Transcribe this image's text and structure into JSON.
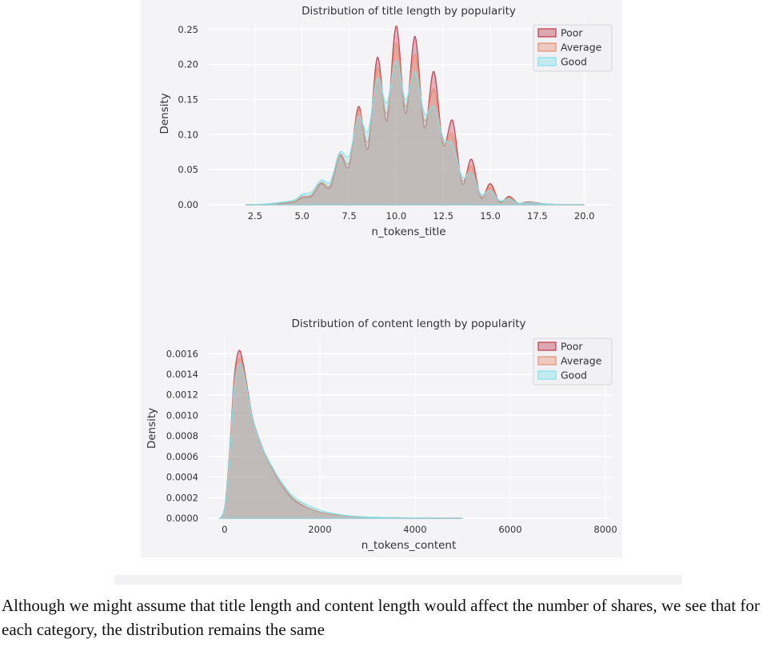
{
  "colors": {
    "figure_bg": "#f4f4f7",
    "grid": "#ffffff",
    "Poor": "#c0394b",
    "Average": "#e8906e",
    "Good": "#7fe3ec",
    "overlap": "#b9bdb3"
  },
  "chart_data": [
    {
      "type": "area",
      "title": "Distribution of title length by popularity",
      "xlabel": "n_tokens_title",
      "ylabel": "Density",
      "xlim": [
        0.0,
        21.5
      ],
      "ylim": [
        0.0,
        0.26
      ],
      "xticks": [
        "2.5",
        "5.0",
        "7.5",
        "10.0",
        "12.5",
        "15.0",
        "17.5",
        "20.0"
      ],
      "xtick_values": [
        2.5,
        5.0,
        7.5,
        10.0,
        12.5,
        15.0,
        17.5,
        20.0
      ],
      "yticks": [
        "0.00",
        "0.05",
        "0.10",
        "0.15",
        "0.20",
        "0.25"
      ],
      "ytick_values": [
        0.0,
        0.05,
        0.1,
        0.15,
        0.2,
        0.25
      ],
      "grid": true,
      "legend": {
        "position": "top-right",
        "entries": [
          "Poor",
          "Average",
          "Good"
        ]
      },
      "series": [
        {
          "name": "Poor",
          "x": [
            2.0,
            3.0,
            4.0,
            4.6,
            5.0,
            5.5,
            6.0,
            6.5,
            7.0,
            7.5,
            8.0,
            8.5,
            9.0,
            9.5,
            10.0,
            10.5,
            11.0,
            11.5,
            12.0,
            12.5,
            13.0,
            13.5,
            14.0,
            14.5,
            15.0,
            15.5,
            16.0,
            16.5,
            17.0,
            18.0,
            19.0,
            20.0
          ],
          "y": [
            0.0,
            0.0,
            0.002,
            0.004,
            0.01,
            0.012,
            0.03,
            0.025,
            0.07,
            0.055,
            0.14,
            0.08,
            0.21,
            0.12,
            0.255,
            0.13,
            0.24,
            0.11,
            0.19,
            0.085,
            0.12,
            0.03,
            0.065,
            0.01,
            0.03,
            0.004,
            0.012,
            0.002,
            0.004,
            0.001,
            0.0,
            0.0
          ]
        },
        {
          "name": "Average",
          "x": [
            2.0,
            3.0,
            4.0,
            4.6,
            5.0,
            5.5,
            6.0,
            6.5,
            7.0,
            7.5,
            8.0,
            8.5,
            9.0,
            9.5,
            10.0,
            10.5,
            11.0,
            11.5,
            12.0,
            12.5,
            13.0,
            13.5,
            14.0,
            14.5,
            15.0,
            15.5,
            16.0,
            16.5,
            17.0,
            18.0,
            19.0,
            20.0
          ],
          "y": [
            0.0,
            0.0,
            0.003,
            0.005,
            0.012,
            0.014,
            0.032,
            0.028,
            0.072,
            0.06,
            0.135,
            0.09,
            0.195,
            0.13,
            0.23,
            0.14,
            0.215,
            0.12,
            0.165,
            0.09,
            0.1,
            0.035,
            0.055,
            0.012,
            0.025,
            0.005,
            0.01,
            0.002,
            0.003,
            0.001,
            0.0,
            0.0
          ]
        },
        {
          "name": "Good",
          "x": [
            2.0,
            3.0,
            4.0,
            4.6,
            5.0,
            5.5,
            6.0,
            6.5,
            7.0,
            7.5,
            8.0,
            8.5,
            9.0,
            9.5,
            10.0,
            10.5,
            11.0,
            11.5,
            12.0,
            12.5,
            13.0,
            13.5,
            14.0,
            14.5,
            15.0,
            15.5,
            16.0,
            16.5,
            17.0,
            18.0,
            19.0,
            20.0
          ],
          "y": [
            0.0,
            0.001,
            0.004,
            0.007,
            0.015,
            0.018,
            0.035,
            0.033,
            0.075,
            0.07,
            0.125,
            0.105,
            0.18,
            0.145,
            0.205,
            0.15,
            0.19,
            0.13,
            0.14,
            0.095,
            0.085,
            0.04,
            0.045,
            0.015,
            0.02,
            0.006,
            0.008,
            0.002,
            0.003,
            0.001,
            0.0,
            0.0
          ]
        }
      ]
    },
    {
      "type": "area",
      "title": "Distribution of content length by popularity",
      "xlabel": "n_tokens_content",
      "ylabel": "Density",
      "xlim": [
        -350,
        8150
      ],
      "ylim": [
        0.0,
        0.00175
      ],
      "xticks": [
        "0",
        "2000",
        "4000",
        "6000",
        "8000"
      ],
      "xtick_values": [
        0,
        2000,
        4000,
        6000,
        8000
      ],
      "yticks": [
        "0.0000",
        "0.0002",
        "0.0004",
        "0.0006",
        "0.0008",
        "0.0010",
        "0.0012",
        "0.0014",
        "0.0016"
      ],
      "ytick_values": [
        0.0,
        0.0002,
        0.0004,
        0.0006,
        0.0008,
        0.001,
        0.0012,
        0.0014,
        0.0016
      ],
      "grid": true,
      "legend": {
        "position": "top-right",
        "entries": [
          "Poor",
          "Average",
          "Good"
        ]
      },
      "series": [
        {
          "name": "Poor",
          "x": [
            -100,
            0,
            100,
            200,
            300,
            400,
            500,
            600,
            800,
            1000,
            1200,
            1500,
            2000,
            2500,
            3000,
            3500,
            4000,
            4500,
            5000
          ],
          "y": [
            0.0,
            0.0001,
            0.0006,
            0.00135,
            0.00163,
            0.00148,
            0.0012,
            0.00095,
            0.00068,
            0.00048,
            0.00032,
            0.00016,
            6e-05,
            2.5e-05,
            1e-05,
            5e-06,
            2e-06,
            1e-06,
            0.0
          ]
        },
        {
          "name": "Average",
          "x": [
            -100,
            0,
            100,
            200,
            300,
            400,
            500,
            600,
            800,
            1000,
            1200,
            1500,
            2000,
            2500,
            3000,
            3500,
            4000,
            4500,
            5000
          ],
          "y": [
            0.0,
            0.0001,
            0.00058,
            0.0013,
            0.00155,
            0.00145,
            0.00118,
            0.00094,
            0.00067,
            0.00048,
            0.00033,
            0.00017,
            6e-05,
            2.5e-05,
            1e-05,
            5e-06,
            2e-06,
            1e-06,
            0.0
          ]
        },
        {
          "name": "Good",
          "x": [
            -100,
            0,
            100,
            200,
            300,
            400,
            500,
            600,
            800,
            1000,
            1200,
            1500,
            2000,
            2500,
            3000,
            3500,
            4000,
            4500,
            5000
          ],
          "y": [
            0.0,
            0.0001,
            0.00055,
            0.00125,
            0.0015,
            0.0014,
            0.00117,
            0.00094,
            0.00068,
            0.0005,
            0.00035,
            0.00019,
            8e-05,
            3e-05,
            1.2e-05,
            6e-06,
            3e-06,
            1e-06,
            0.0
          ]
        }
      ]
    }
  ],
  "caption": {
    "text": "Although we might assume that title length and content length would affect the number of shares, we see that for each category, the distribution remains the same"
  }
}
